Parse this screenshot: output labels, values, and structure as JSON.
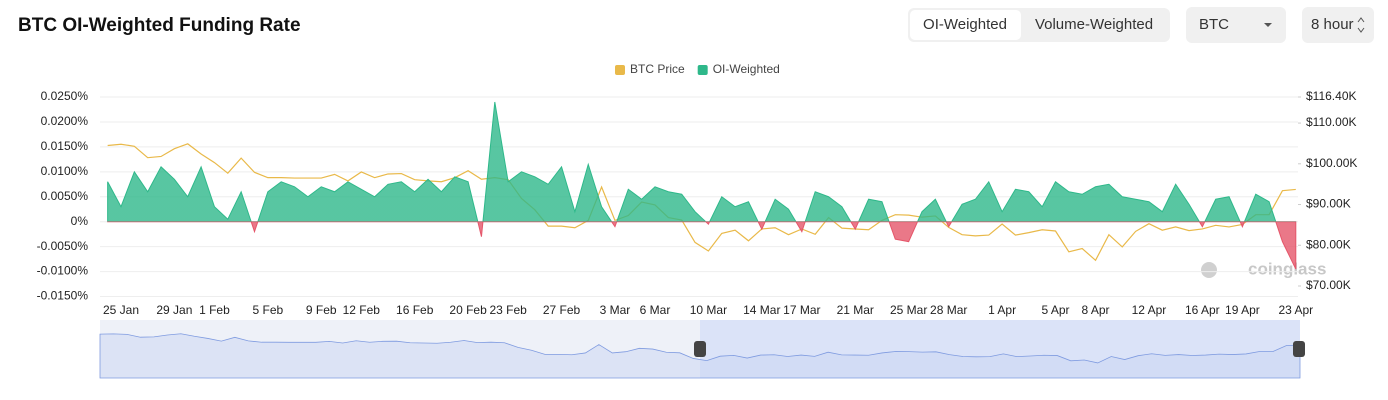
{
  "header": {
    "title": "BTC OI-Weighted Funding Rate",
    "controls": {
      "modes": [
        "OI-Weighted",
        "Volume-Weighted"
      ],
      "active_mode": 0,
      "coin": "BTC",
      "interval": "8 hour"
    }
  },
  "chart_data": {
    "type": "combo",
    "watermark": "coinglass",
    "grid": true,
    "legend": "top",
    "categories": [
      null,
      "25 Jan",
      null,
      null,
      null,
      "29 Jan",
      null,
      null,
      "1 Feb",
      null,
      null,
      null,
      "5 Feb",
      null,
      null,
      null,
      "9 Feb",
      null,
      null,
      "12 Feb",
      null,
      null,
      null,
      "16 Feb",
      null,
      null,
      null,
      "20 Feb",
      null,
      null,
      "23 Feb",
      null,
      null,
      null,
      "27 Feb",
      null,
      null,
      null,
      "3 Mar",
      null,
      null,
      "6 Mar",
      null,
      null,
      null,
      "10 Mar",
      null,
      null,
      null,
      "14 Mar",
      null,
      null,
      "17 Mar",
      null,
      null,
      null,
      "21 Mar",
      null,
      null,
      null,
      "25 Mar",
      null,
      null,
      "28 Mar",
      null,
      null,
      null,
      "1 Apr",
      null,
      null,
      null,
      "5 Apr",
      null,
      null,
      "8 Apr",
      null,
      null,
      null,
      "12 Apr",
      null,
      null,
      null,
      "16 Apr",
      null,
      null,
      "19 Apr",
      null,
      null,
      null,
      "23 Apr"
    ],
    "ylim": [
      -0.015,
      0.025
    ],
    "yticks": [
      {
        "value": -0.015,
        "label": "-0.0150%"
      },
      {
        "value": -0.01,
        "label": "-0.0100%"
      },
      {
        "value": -0.005,
        "label": "-0.0050%"
      },
      {
        "value": 0,
        "label": "0%"
      },
      {
        "value": 0.005,
        "label": "0.0050%"
      },
      {
        "value": 0.01,
        "label": "0.0100%"
      },
      {
        "value": 0.015,
        "label": "0.0150%"
      },
      {
        "value": 0.02,
        "label": "0.0200%"
      },
      {
        "value": 0.025,
        "label": "0.0250%"
      }
    ],
    "y2lim": [
      67420,
      116400
    ],
    "y2ticks": [
      {
        "value": 70000,
        "label": "$70.00K"
      },
      {
        "value": 80000,
        "label": "$80.00K"
      },
      {
        "value": 90000,
        "label": "$90.00K"
      },
      {
        "value": 100000,
        "label": "$100.00K"
      },
      {
        "value": 110000,
        "label": "$110.00K"
      },
      {
        "value": 116400,
        "label": "$116.40K"
      }
    ],
    "series": [
      {
        "name": "BTC Price",
        "type": "line",
        "axis": "y2",
        "color": "#e9b949",
        "values": [
          104500,
          104800,
          104300,
          101500,
          101800,
          103700,
          104900,
          102400,
          100300,
          97700,
          101400,
          97900,
          96600,
          96600,
          96500,
          96500,
          96500,
          97400,
          95800,
          98000,
          96600,
          97500,
          97600,
          96100,
          95800,
          95600,
          96600,
          98300,
          96200,
          96600,
          96100,
          91500,
          88700,
          84700,
          84700,
          84300,
          86100,
          94300,
          86100,
          87300,
          90600,
          89900,
          86800,
          86200,
          80700,
          78600,
          82900,
          83700,
          81100,
          84000,
          84300,
          82600,
          84000,
          82700,
          86800,
          84200,
          84000,
          83800,
          86100,
          87500,
          87400,
          86900,
          87200,
          84400,
          82600,
          82300,
          82500,
          85200,
          82500,
          83100,
          83800,
          83500,
          78400,
          79200,
          76300,
          82600,
          79600,
          83400,
          85300,
          83700,
          84500,
          83600,
          84000,
          84900,
          84500,
          85100,
          87500,
          87500,
          93400,
          93700
        ]
      },
      {
        "name": "OI-Weighted",
        "type": "area",
        "color": "#2eb88a",
        "negative_color": "#e5566a",
        "values": [
          0.008,
          0.003,
          0.01,
          0.006,
          0.011,
          0.0085,
          0.005,
          0.011,
          0.003,
          0.0005,
          0.006,
          -0.002,
          0.006,
          0.008,
          0.007,
          0.005,
          0.007,
          0.006,
          0.008,
          0.0065,
          0.005,
          0.0075,
          0.008,
          0.006,
          0.0085,
          0.006,
          0.009,
          0.008,
          -0.003,
          0.024,
          0.008,
          0.01,
          0.009,
          0.0075,
          0.011,
          0.002,
          0.0115,
          0.003,
          -0.001,
          0.0065,
          0.0045,
          0.007,
          0.006,
          0.0055,
          0.002,
          -0.0005,
          0.005,
          0.003,
          0.004,
          -0.0015,
          0.0045,
          0.0025,
          -0.002,
          0.006,
          0.005,
          0.003,
          -0.0015,
          0.0045,
          0.004,
          -0.0035,
          -0.004,
          0.002,
          0.0045,
          -0.001,
          0.0035,
          0.0045,
          0.008,
          0.002,
          0.0065,
          0.006,
          0.003,
          0.008,
          0.006,
          0.0055,
          0.007,
          0.0075,
          0.005,
          0.0045,
          0.004,
          0.002,
          0.0075,
          0.0035,
          -0.001,
          0.0045,
          0.005,
          -0.001,
          0.0055,
          0.004,
          -0.004,
          -0.0095
        ]
      }
    ]
  }
}
